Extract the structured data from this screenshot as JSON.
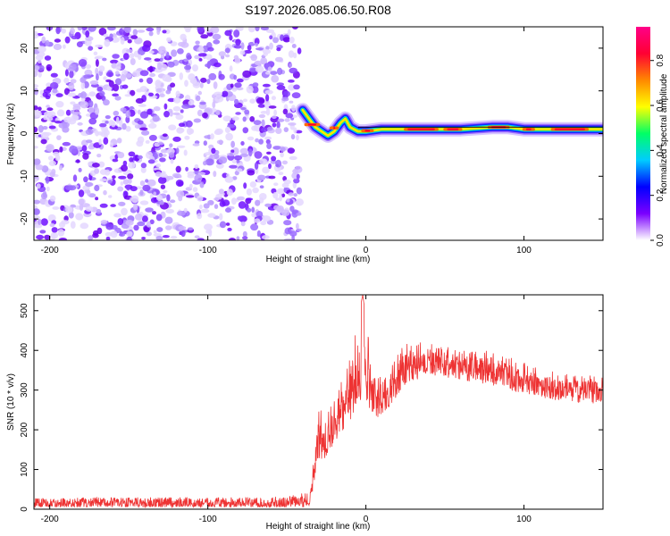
{
  "figure": {
    "title": "S197.2026.085.06.50.R08"
  },
  "chart_data": [
    {
      "type": "heatmap",
      "xlabel": "Height of straight line (km)",
      "ylabel": "Frequency (Hz)",
      "xlim": [
        -210,
        150
      ],
      "ylim": [
        -25,
        25
      ],
      "x_ticks": [
        -200,
        -100,
        0,
        100
      ],
      "y_ticks": [
        -20,
        -10,
        0,
        10,
        20
      ],
      "x_tick_labels": [
        "-200",
        "-100",
        "0",
        "100"
      ],
      "y_tick_labels": [
        "-20",
        "-10",
        "0",
        "10",
        "20"
      ],
      "colorbar": {
        "label": "Normalized spectral amplitude",
        "range": [
          0,
          0.95
        ],
        "ticks": [
          0.0,
          0.2,
          0.4,
          0.6,
          0.8
        ],
        "tick_labels": [
          "0.0",
          "0.2",
          "0.4",
          "0.6",
          "0.8"
        ],
        "colormap": [
          "#ffffff",
          "#7b00ff",
          "#0000ff",
          "#00ccff",
          "#00ff66",
          "#ffff00",
          "#ff8800",
          "#ff0033",
          "#ff0088"
        ]
      },
      "noise_region": {
        "x_range": [
          -210,
          -42
        ],
        "y_range": [
          -25,
          25
        ],
        "amplitude_range": [
          0.0,
          0.1
        ]
      },
      "ridge": [
        {
          "x": -40,
          "y": 5.5
        },
        {
          "x": -36,
          "y": 3.5
        },
        {
          "x": -32,
          "y": 1.5
        },
        {
          "x": -28,
          "y": 0.5
        },
        {
          "x": -24,
          "y": -0.5
        },
        {
          "x": -20,
          "y": 0.5
        },
        {
          "x": -16,
          "y": 2.5
        },
        {
          "x": -13,
          "y": 3.5
        },
        {
          "x": -10,
          "y": 1.5
        },
        {
          "x": -5,
          "y": 0.5
        },
        {
          "x": 0,
          "y": 0.5
        },
        {
          "x": 10,
          "y": 1.0
        },
        {
          "x": 20,
          "y": 1.0
        },
        {
          "x": 40,
          "y": 1.0
        },
        {
          "x": 60,
          "y": 1.0
        },
        {
          "x": 80,
          "y": 1.5
        },
        {
          "x": 90,
          "y": 1.5
        },
        {
          "x": 100,
          "y": 1.0
        },
        {
          "x": 120,
          "y": 1.0
        },
        {
          "x": 150,
          "y": 1.0
        }
      ],
      "reference_line": {
        "y": 1.5,
        "x_range": [
          -5,
          150
        ]
      },
      "grid": false
    },
    {
      "type": "line",
      "xlabel": "Height of straight line (km)",
      "ylabel": "SNR (10 * v/v)",
      "xlim": [
        -210,
        150
      ],
      "ylim": [
        0,
        540
      ],
      "x_ticks": [
        -200,
        -100,
        0,
        100
      ],
      "y_ticks": [
        0,
        100,
        200,
        300,
        400,
        500
      ],
      "x_tick_labels": [
        "-200",
        "-100",
        "0",
        "100"
      ],
      "y_tick_labels": [
        "0",
        "100",
        "200",
        "300",
        "400",
        "500"
      ],
      "series": [
        {
          "color": "#ee3333",
          "envelope": [
            {
              "x": -210,
              "low": 5,
              "high": 28
            },
            {
              "x": -150,
              "low": 5,
              "high": 30
            },
            {
              "x": -100,
              "low": 5,
              "high": 30
            },
            {
              "x": -50,
              "low": 5,
              "high": 32
            },
            {
              "x": -35,
              "low": 5,
              "high": 45
            },
            {
              "x": -30,
              "low": 40,
              "high": 255
            },
            {
              "x": -25,
              "low": 80,
              "high": 240
            },
            {
              "x": -20,
              "low": 110,
              "high": 275
            },
            {
              "x": -10,
              "low": 140,
              "high": 380
            },
            {
              "x": -2,
              "low": 160,
              "high": 540
            },
            {
              "x": 5,
              "low": 170,
              "high": 330
            },
            {
              "x": 15,
              "low": 210,
              "high": 360
            },
            {
              "x": 25,
              "low": 265,
              "high": 420
            },
            {
              "x": 40,
              "low": 300,
              "high": 420
            },
            {
              "x": 60,
              "low": 290,
              "high": 400
            },
            {
              "x": 80,
              "low": 270,
              "high": 400
            },
            {
              "x": 100,
              "low": 250,
              "high": 370
            },
            {
              "x": 120,
              "low": 240,
              "high": 345
            },
            {
              "x": 150,
              "low": 230,
              "high": 335
            }
          ]
        }
      ],
      "grid": false
    }
  ]
}
